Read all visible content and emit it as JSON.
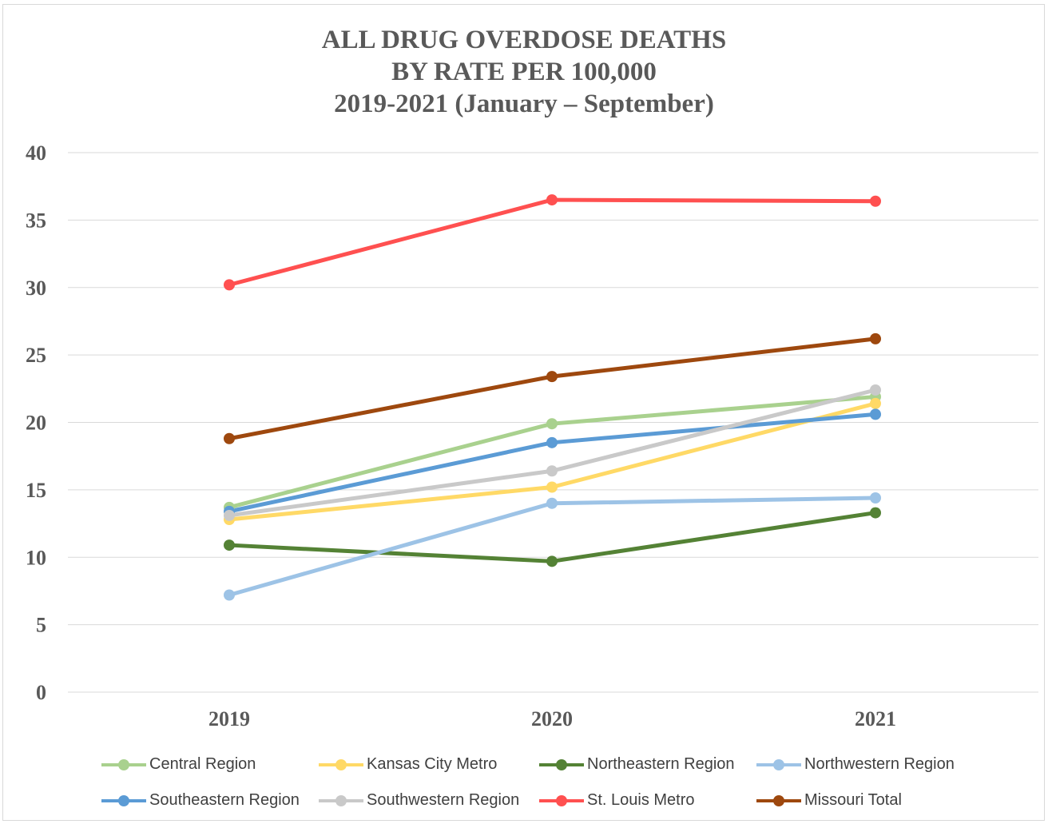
{
  "title_lines": [
    "ALL DRUG OVERDOSE DEATHS",
    "BY RATE PER 100,000",
    "2019-2021 (January – September)"
  ],
  "chart_data": {
    "type": "line",
    "title": "ALL DRUG OVERDOSE DEATHS BY RATE PER 100,000 2019-2021 (January – September)",
    "x": [
      "2019",
      "2020",
      "2021"
    ],
    "ylim": [
      0,
      40
    ],
    "yticks": [
      "0",
      "5",
      "10",
      "15",
      "20",
      "25",
      "30",
      "35",
      "40"
    ],
    "grid": true,
    "legend_position": "bottom",
    "series": [
      {
        "name": "Central Region",
        "color": "#a9d18e",
        "values": [
          13.7,
          19.9,
          21.9
        ]
      },
      {
        "name": "Kansas City Metro",
        "color": "#ffd966",
        "values": [
          12.8,
          15.2,
          21.4
        ]
      },
      {
        "name": "Northeastern Region",
        "color": "#548235",
        "values": [
          10.9,
          9.7,
          13.3
        ]
      },
      {
        "name": "Northwestern Region",
        "color": "#9dc3e6",
        "values": [
          7.2,
          14.0,
          14.4
        ]
      },
      {
        "name": "Southeastern Region",
        "color": "#5b9bd5",
        "values": [
          13.4,
          18.5,
          20.6
        ]
      },
      {
        "name": "Southwestern Region",
        "color": "#c9c9c9",
        "values": [
          13.1,
          16.4,
          22.4
        ]
      },
      {
        "name": "St. Louis Metro",
        "color": "#ff5050",
        "values": [
          30.2,
          36.5,
          36.4
        ]
      },
      {
        "name": "Missouri Total",
        "color": "#9e480e",
        "values": [
          18.8,
          23.4,
          26.2
        ]
      }
    ]
  }
}
